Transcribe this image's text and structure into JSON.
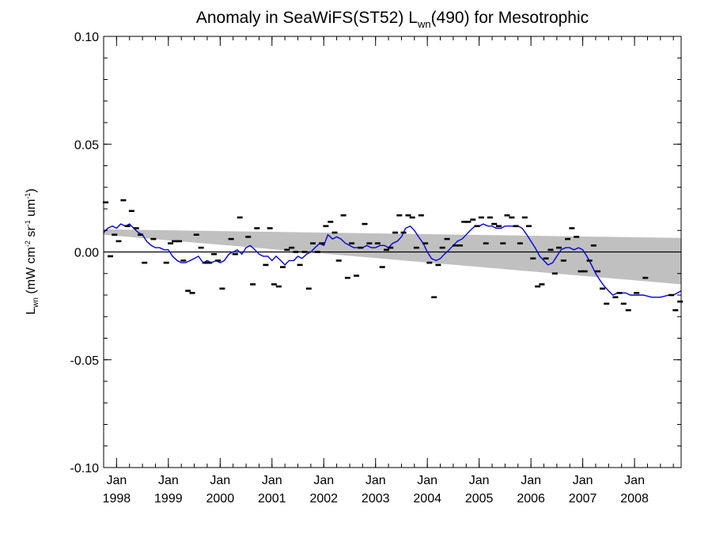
{
  "chart_data": {
    "type": "scatter",
    "title": "Anomaly in SeaWiFS(ST52) L",
    "title_sub": "wn",
    "title_suffix": "(490) for Mesotrophic",
    "ylabel": {
      "main": "L",
      "sub": "wn",
      "units_parts": [
        {
          "text": " (mW cm",
          "role": "normal"
        },
        {
          "text": "-2",
          "role": "sup"
        },
        {
          "text": " sr",
          "role": "normal"
        },
        {
          "text": "-1",
          "role": "sup"
        },
        {
          "text": " um",
          "role": "normal"
        },
        {
          "text": "-1",
          "role": "sup"
        },
        {
          "text": ")",
          "role": "normal"
        }
      ]
    },
    "xlim": [
      1997.75,
      2008.9
    ],
    "ylim": [
      -0.1,
      0.1
    ],
    "y_ticks": [
      {
        "value": 0.1,
        "label": "0.10"
      },
      {
        "value": 0.05,
        "label": "0.05"
      },
      {
        "value": 0.0,
        "label": "0.00"
      },
      {
        "value": -0.05,
        "label": "-0.05"
      },
      {
        "value": -0.1,
        "label": "-0.10"
      }
    ],
    "x_ticks": [
      {
        "value": 1998,
        "month": "Jan",
        "year": "1998"
      },
      {
        "value": 1999,
        "month": "Jan",
        "year": "1999"
      },
      {
        "value": 2000,
        "month": "Jan",
        "year": "2000"
      },
      {
        "value": 2001,
        "month": "Jan",
        "year": "2001"
      },
      {
        "value": 2002,
        "month": "Jan",
        "year": "2002"
      },
      {
        "value": 2003,
        "month": "Jan",
        "year": "2003"
      },
      {
        "value": 2004,
        "month": "Jan",
        "year": "2004"
      },
      {
        "value": 2005,
        "month": "Jan",
        "year": "2005"
      },
      {
        "value": 2006,
        "month": "Jan",
        "year": "2006"
      },
      {
        "value": 2007,
        "month": "Jan",
        "year": "2007"
      },
      {
        "value": 2008,
        "month": "Jan",
        "year": "2008"
      }
    ],
    "zero_line": true,
    "band": {
      "x": [
        1997.75,
        2008.9
      ],
      "upper": [
        0.0105,
        0.0065
      ],
      "lower": [
        0.008,
        -0.015
      ]
    },
    "points": [
      [
        1997.79,
        0.023
      ],
      [
        1997.88,
        -0.002
      ],
      [
        1997.96,
        0.008
      ],
      [
        1998.04,
        0.005
      ],
      [
        1998.13,
        0.024
      ],
      [
        1998.21,
        0.012
      ],
      [
        1998.29,
        0.019
      ],
      [
        1998.38,
        0.011
      ],
      [
        1998.46,
        0.008
      ],
      [
        1998.54,
        -0.005
      ],
      [
        1998.71,
        0.006
      ],
      [
        1998.96,
        -0.005
      ],
      [
        1999.04,
        0.004
      ],
      [
        1999.12,
        0.005
      ],
      [
        1999.21,
        0.005
      ],
      [
        1999.29,
        -0.004
      ],
      [
        1999.38,
        -0.018
      ],
      [
        1999.46,
        -0.019
      ],
      [
        1999.54,
        0.008
      ],
      [
        1999.63,
        0.002
      ],
      [
        1999.71,
        -0.005
      ],
      [
        1999.79,
        -0.005
      ],
      [
        1999.88,
        -0.001
      ],
      [
        1999.96,
        -0.004
      ],
      [
        2000.04,
        -0.017
      ],
      [
        2000.21,
        0.006
      ],
      [
        2000.29,
        -0.001
      ],
      [
        2000.38,
        0.016
      ],
      [
        2000.54,
        0.007
      ],
      [
        2000.63,
        -0.015
      ],
      [
        2000.71,
        0.011
      ],
      [
        2000.88,
        -0.006
      ],
      [
        2000.96,
        0.011
      ],
      [
        2001.04,
        -0.015
      ],
      [
        2001.13,
        -0.016
      ],
      [
        2001.21,
        -0.007
      ],
      [
        2001.29,
        0.001
      ],
      [
        2001.38,
        0.002
      ],
      [
        2001.46,
        0.0
      ],
      [
        2001.54,
        -0.006
      ],
      [
        2001.63,
        0.0
      ],
      [
        2001.71,
        -0.017
      ],
      [
        2001.79,
        0.004
      ],
      [
        2001.88,
        0.0
      ],
      [
        2001.96,
        0.004
      ],
      [
        2002.04,
        0.012
      ],
      [
        2002.13,
        0.014
      ],
      [
        2002.21,
        0.009
      ],
      [
        2002.29,
        -0.004
      ],
      [
        2002.38,
        0.017
      ],
      [
        2002.46,
        -0.012
      ],
      [
        2002.54,
        0.004
      ],
      [
        2002.63,
        -0.011
      ],
      [
        2002.71,
        0.002
      ],
      [
        2002.79,
        0.013
      ],
      [
        2002.88,
        0.004
      ],
      [
        2003.04,
        0.004
      ],
      [
        2003.13,
        -0.007
      ],
      [
        2003.21,
        0.001
      ],
      [
        2003.29,
        0.002
      ],
      [
        2003.38,
        0.009
      ],
      [
        2003.46,
        0.017
      ],
      [
        2003.54,
        0.009
      ],
      [
        2003.63,
        0.017
      ],
      [
        2003.71,
        0.016
      ],
      [
        2003.79,
        0.002
      ],
      [
        2003.88,
        0.017
      ],
      [
        2003.96,
        0.004
      ],
      [
        2004.04,
        -0.005
      ],
      [
        2004.13,
        -0.021
      ],
      [
        2004.21,
        -0.006
      ],
      [
        2004.29,
        0.002
      ],
      [
        2004.38,
        0.006
      ],
      [
        2004.54,
        0.003
      ],
      [
        2004.63,
        0.003
      ],
      [
        2004.71,
        0.014
      ],
      [
        2004.79,
        0.014
      ],
      [
        2004.88,
        0.015
      ],
      [
        2004.96,
        0.012
      ],
      [
        2005.04,
        0.016
      ],
      [
        2005.13,
        0.004
      ],
      [
        2005.21,
        0.016
      ],
      [
        2005.29,
        0.013
      ],
      [
        2005.38,
        0.012
      ],
      [
        2005.46,
        0.004
      ],
      [
        2005.54,
        0.017
      ],
      [
        2005.63,
        0.016
      ],
      [
        2005.71,
        0.012
      ],
      [
        2005.79,
        0.004
      ],
      [
        2005.88,
        0.016
      ],
      [
        2005.96,
        0.012
      ],
      [
        2006.04,
        -0.003
      ],
      [
        2006.13,
        -0.016
      ],
      [
        2006.21,
        -0.015
      ],
      [
        2006.29,
        -0.003
      ],
      [
        2006.38,
        0.001
      ],
      [
        2006.46,
        -0.01
      ],
      [
        2006.54,
        0.002
      ],
      [
        2006.63,
        -0.004
      ],
      [
        2006.71,
        0.006
      ],
      [
        2006.79,
        0.011
      ],
      [
        2006.88,
        0.007
      ],
      [
        2006.96,
        -0.009
      ],
      [
        2007.04,
        -0.009
      ],
      [
        2007.13,
        -0.004
      ],
      [
        2007.21,
        0.003
      ],
      [
        2007.29,
        -0.009
      ],
      [
        2007.38,
        -0.017
      ],
      [
        2007.46,
        -0.024
      ],
      [
        2007.63,
        -0.021
      ],
      [
        2007.71,
        -0.019
      ],
      [
        2007.79,
        -0.024
      ],
      [
        2007.88,
        -0.027
      ],
      [
        2008.04,
        -0.019
      ],
      [
        2008.21,
        -0.012
      ],
      [
        2008.71,
        -0.02
      ],
      [
        2008.79,
        -0.027
      ],
      [
        2008.88,
        -0.023
      ]
    ],
    "smooth_line": {
      "color": "#0000dd",
      "points": [
        [
          1997.75,
          0.009
        ],
        [
          1997.83,
          0.011
        ],
        [
          1997.92,
          0.012
        ],
        [
          1998.0,
          0.011
        ],
        [
          1998.08,
          0.013
        ],
        [
          1998.17,
          0.012
        ],
        [
          1998.25,
          0.013
        ],
        [
          1998.33,
          0.011
        ],
        [
          1998.42,
          0.009
        ],
        [
          1998.5,
          0.008
        ],
        [
          1998.58,
          0.005
        ],
        [
          1998.67,
          0.003
        ],
        [
          1998.75,
          0.002
        ],
        [
          1998.83,
          0.002
        ],
        [
          1998.92,
          0.001
        ],
        [
          1999.0,
          0.001
        ],
        [
          1999.08,
          -0.002
        ],
        [
          1999.17,
          -0.004
        ],
        [
          1999.25,
          -0.005
        ],
        [
          1999.33,
          -0.005
        ],
        [
          1999.42,
          -0.004
        ],
        [
          1999.5,
          -0.003
        ],
        [
          1999.58,
          -0.002
        ],
        [
          1999.67,
          -0.005
        ],
        [
          1999.75,
          -0.004
        ],
        [
          1999.83,
          -0.005
        ],
        [
          1999.92,
          -0.004
        ],
        [
          2000.0,
          -0.005
        ],
        [
          2000.08,
          -0.004
        ],
        [
          2000.17,
          -0.001
        ],
        [
          2000.25,
          0.0
        ],
        [
          2000.33,
          0.001
        ],
        [
          2000.42,
          -0.001
        ],
        [
          2000.5,
          0.002
        ],
        [
          2000.58,
          0.003
        ],
        [
          2000.67,
          0.001
        ],
        [
          2000.75,
          -0.001
        ],
        [
          2000.83,
          -0.002
        ],
        [
          2000.92,
          -0.002
        ],
        [
          2001.0,
          -0.004
        ],
        [
          2001.08,
          -0.002
        ],
        [
          2001.17,
          -0.004
        ],
        [
          2001.25,
          -0.006
        ],
        [
          2001.33,
          -0.004
        ],
        [
          2001.42,
          -0.004
        ],
        [
          2001.5,
          -0.002
        ],
        [
          2001.58,
          -0.003
        ],
        [
          2001.67,
          -0.001
        ],
        [
          2001.75,
          0.0
        ],
        [
          2001.83,
          0.002
        ],
        [
          2001.92,
          0.004
        ],
        [
          2002.0,
          0.003
        ],
        [
          2002.08,
          0.008
        ],
        [
          2002.17,
          0.006
        ],
        [
          2002.25,
          0.007
        ],
        [
          2002.33,
          0.006
        ],
        [
          2002.42,
          0.004
        ],
        [
          2002.5,
          0.003
        ],
        [
          2002.58,
          0.002
        ],
        [
          2002.67,
          0.002
        ],
        [
          2002.75,
          0.002
        ],
        [
          2002.83,
          0.003
        ],
        [
          2002.92,
          0.002
        ],
        [
          2003.0,
          0.002
        ],
        [
          2003.08,
          0.003
        ],
        [
          2003.17,
          0.003
        ],
        [
          2003.25,
          0.002
        ],
        [
          2003.33,
          0.004
        ],
        [
          2003.42,
          0.005
        ],
        [
          2003.5,
          0.007
        ],
        [
          2003.58,
          0.011
        ],
        [
          2003.67,
          0.012
        ],
        [
          2003.75,
          0.01
        ],
        [
          2003.83,
          0.007
        ],
        [
          2003.92,
          0.004
        ],
        [
          2004.0,
          0.0
        ],
        [
          2004.08,
          -0.003
        ],
        [
          2004.17,
          -0.004
        ],
        [
          2004.25,
          -0.003
        ],
        [
          2004.33,
          -0.001
        ],
        [
          2004.42,
          0.001
        ],
        [
          2004.5,
          0.003
        ],
        [
          2004.58,
          0.005
        ],
        [
          2004.67,
          0.006
        ],
        [
          2004.75,
          0.008
        ],
        [
          2004.83,
          0.01
        ],
        [
          2004.92,
          0.012
        ],
        [
          2005.0,
          0.012
        ],
        [
          2005.08,
          0.013
        ],
        [
          2005.17,
          0.012
        ],
        [
          2005.25,
          0.012
        ],
        [
          2005.33,
          0.011
        ],
        [
          2005.42,
          0.011
        ],
        [
          2005.5,
          0.012
        ],
        [
          2005.58,
          0.012
        ],
        [
          2005.67,
          0.012
        ],
        [
          2005.75,
          0.012
        ],
        [
          2005.83,
          0.011
        ],
        [
          2005.92,
          0.008
        ],
        [
          2006.0,
          0.005
        ],
        [
          2006.08,
          0.002
        ],
        [
          2006.17,
          -0.002
        ],
        [
          2006.25,
          -0.004
        ],
        [
          2006.33,
          -0.006
        ],
        [
          2006.42,
          -0.005
        ],
        [
          2006.5,
          -0.002
        ],
        [
          2006.58,
          0.001
        ],
        [
          2006.67,
          0.002
        ],
        [
          2006.75,
          0.002
        ],
        [
          2006.83,
          0.001
        ],
        [
          2006.92,
          0.002
        ],
        [
          2007.0,
          0.001
        ],
        [
          2007.08,
          -0.002
        ],
        [
          2007.17,
          -0.006
        ],
        [
          2007.25,
          -0.01
        ],
        [
          2007.33,
          -0.013
        ],
        [
          2007.42,
          -0.016
        ],
        [
          2007.5,
          -0.018
        ],
        [
          2007.58,
          -0.02
        ],
        [
          2007.67,
          -0.019
        ],
        [
          2007.75,
          -0.019
        ],
        [
          2007.83,
          -0.019
        ],
        [
          2007.92,
          -0.02
        ],
        [
          2008.0,
          -0.02
        ],
        [
          2008.17,
          -0.02
        ],
        [
          2008.33,
          -0.021
        ],
        [
          2008.5,
          -0.021
        ],
        [
          2008.67,
          -0.02
        ],
        [
          2008.75,
          -0.02
        ],
        [
          2008.83,
          -0.019
        ],
        [
          2008.9,
          -0.018
        ]
      ]
    },
    "grid": false,
    "legend": "none"
  }
}
